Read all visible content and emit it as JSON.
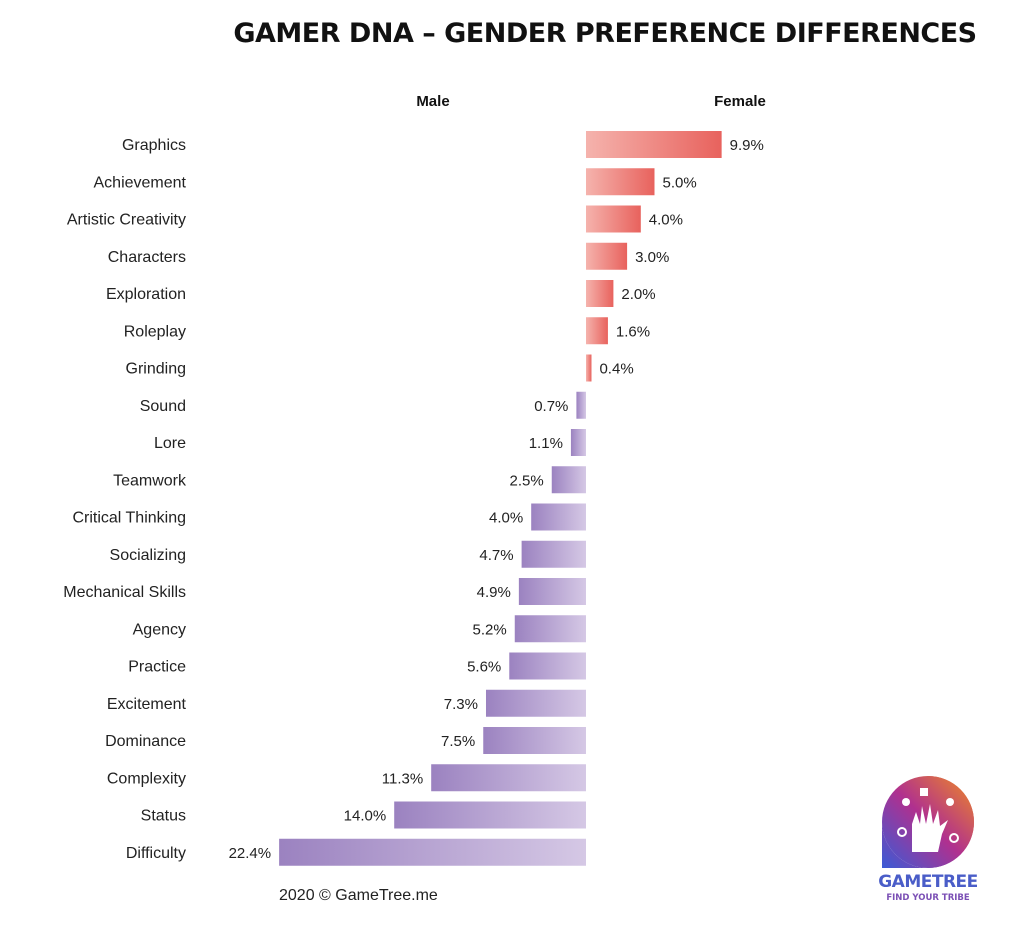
{
  "chart_data": {
    "type": "bar",
    "orientation": "horizontal-diverging",
    "title": "GAMER DNA – GENDER PREFERENCE DIFFERENCES",
    "side_labels": {
      "left": "Male",
      "right": "Female"
    },
    "categories": [
      "Graphics",
      "Achievement",
      "Artistic Creativity",
      "Characters",
      "Exploration",
      "Roleplay",
      "Grinding",
      "Sound",
      "Lore",
      "Teamwork",
      "Critical Thinking",
      "Socializing",
      "Mechanical Skills",
      "Agency",
      "Practice",
      "Excitement",
      "Dominance",
      "Complexity",
      "Status",
      "Difficulty"
    ],
    "values": [
      9.9,
      5.0,
      4.0,
      3.0,
      2.0,
      1.6,
      0.4,
      -0.7,
      -1.1,
      -2.5,
      -4.0,
      -4.7,
      -4.9,
      -5.2,
      -5.6,
      -7.3,
      -7.5,
      -11.3,
      -14.0,
      -22.4
    ],
    "value_labels": [
      "9.9%",
      "5.0%",
      "4.0%",
      "3.0%",
      "2.0%",
      "1.6%",
      "0.4%",
      "0.7%",
      "1.1%",
      "2.5%",
      "4.0%",
      "4.7%",
      "4.9%",
      "5.2%",
      "5.6%",
      "7.3%",
      "7.5%",
      "11.3%",
      "14.0%",
      "22.4%"
    ],
    "colors": {
      "female_bar_start": "#f5b3ad",
      "female_bar_end": "#e8625d",
      "male_bar_start": "#9b82c0",
      "male_bar_end": "#d5c8e5"
    },
    "grid": false
  },
  "footer": {
    "text": "2020 © GameTree.me"
  },
  "logo": {
    "name": "GAMETREE",
    "tagline": "FIND YOUR TRIBE",
    "icon": "gametree-logo-icon"
  }
}
